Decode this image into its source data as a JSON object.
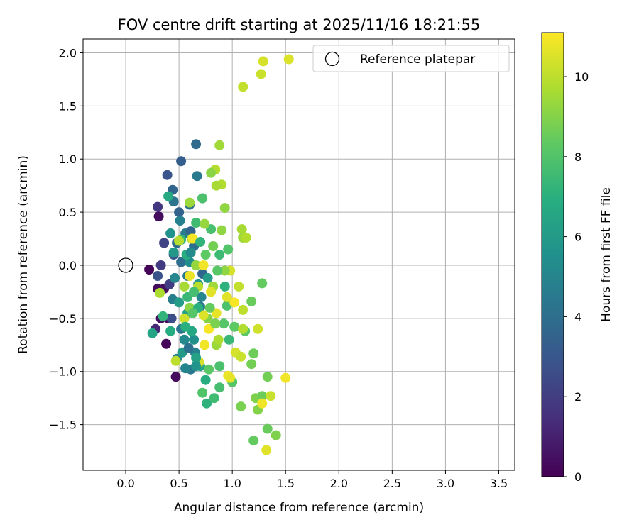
{
  "chart_data": {
    "type": "scatter",
    "title": "FOV centre drift starting at 2025/11/16 18:21:55",
    "xlabel": "Angular distance from reference (arcmin)",
    "ylabel": "Rotation from reference (arcmin)",
    "xlim": [
      -0.4,
      3.65
    ],
    "ylim": [
      -1.93,
      2.13
    ],
    "xticks": [
      0.0,
      0.5,
      1.0,
      1.5,
      2.0,
      2.5,
      3.0,
      3.5
    ],
    "xtick_labels": [
      "0.0",
      "0.5",
      "1.0",
      "1.5",
      "2.0",
      "2.5",
      "3.0",
      "3.5"
    ],
    "yticks": [
      -1.5,
      -1.0,
      -0.5,
      0.0,
      0.5,
      1.0,
      1.5,
      2.0
    ],
    "ytick_labels": [
      "−1.5",
      "−1.0",
      "−0.5",
      "0.0",
      "0.5",
      "1.0",
      "1.5",
      "2.0"
    ],
    "grid": true,
    "legend": {
      "placement": "top-right",
      "entries": [
        "Reference platepar"
      ]
    },
    "colormap": "viridis",
    "colorbar": {
      "label": "Hours from first FF file",
      "range": [
        0,
        11.1
      ],
      "ticks": [
        0,
        2,
        4,
        6,
        8,
        10
      ],
      "tick_labels": [
        "0",
        "2",
        "4",
        "6",
        "8",
        "10"
      ]
    },
    "reference_point": {
      "name": "Reference platepar",
      "x": 0.0,
      "y": 0.0
    },
    "points": [
      [
        0.22,
        -0.04,
        0.1
      ],
      [
        0.3,
        -0.22,
        0.3
      ],
      [
        0.36,
        -0.22,
        0.4
      ],
      [
        0.4,
        -0.5,
        0.2
      ],
      [
        0.31,
        0.46,
        0.4
      ],
      [
        0.38,
        -0.74,
        0.2
      ],
      [
        0.47,
        -1.05,
        0.3
      ],
      [
        0.33,
        -0.5,
        0.5
      ],
      [
        0.28,
        -0.6,
        1.2
      ],
      [
        0.3,
        0.55,
        1.8
      ],
      [
        0.33,
        0.0,
        1.9
      ],
      [
        0.36,
        0.21,
        2.2
      ],
      [
        0.41,
        -0.18,
        2.0
      ],
      [
        0.43,
        -0.5,
        2.6
      ],
      [
        0.3,
        -0.1,
        2.8
      ],
      [
        0.45,
        0.1,
        3.0
      ],
      [
        0.39,
        0.85,
        2.9
      ],
      [
        0.52,
        0.98,
        3.3
      ],
      [
        0.44,
        0.71,
        3.6
      ],
      [
        0.66,
        1.14,
        3.8
      ],
      [
        0.67,
        0.84,
        4.5
      ],
      [
        0.6,
        0.57,
        4.1
      ],
      [
        0.72,
        0.63,
        3.4
      ],
      [
        0.45,
        0.6,
        4.2
      ],
      [
        0.5,
        0.5,
        3.5
      ],
      [
        0.56,
        0.3,
        4.6
      ],
      [
        0.61,
        0.32,
        3.6
      ],
      [
        0.48,
        0.21,
        3.9
      ],
      [
        0.52,
        0.03,
        4.0
      ],
      [
        0.58,
        -0.1,
        4.5
      ],
      [
        0.44,
        -0.32,
        4.7
      ],
      [
        0.52,
        -0.6,
        4.3
      ],
      [
        0.48,
        -0.88,
        4.9
      ],
      [
        0.61,
        -0.98,
        4.4
      ],
      [
        0.56,
        -0.97,
        5.0
      ],
      [
        0.65,
        -0.82,
        4.8
      ],
      [
        0.7,
        -0.39,
        4.6
      ],
      [
        0.72,
        -0.08,
        3.7
      ],
      [
        0.64,
        0.18,
        4.0
      ],
      [
        0.51,
        0.42,
        4.8
      ],
      [
        0.42,
        0.3,
        5.6
      ],
      [
        0.45,
        0.12,
        5.9
      ],
      [
        0.6,
        0.03,
        5.4
      ],
      [
        0.68,
        -0.18,
        5.8
      ],
      [
        0.58,
        -0.45,
        6.2
      ],
      [
        0.64,
        -0.7,
        5.5
      ],
      [
        0.53,
        -0.82,
        6.0
      ],
      [
        0.7,
        -0.95,
        6.5
      ],
      [
        0.75,
        -1.08,
        6.9
      ],
      [
        0.76,
        -1.3,
        7.1
      ],
      [
        0.42,
        -0.62,
        6.8
      ],
      [
        0.35,
        -0.48,
        7.2
      ],
      [
        0.25,
        -0.64,
        6.4
      ],
      [
        0.4,
        0.65,
        6.7
      ],
      [
        0.52,
        0.24,
        7.3
      ],
      [
        0.58,
        -0.3,
        7.4
      ],
      [
        0.66,
        0.4,
        7.6
      ],
      [
        0.8,
        0.34,
        7.8
      ],
      [
        0.88,
        0.1,
        7.5
      ],
      [
        0.96,
        0.15,
        8.0
      ],
      [
        0.95,
        -0.38,
        7.9
      ],
      [
        0.92,
        -0.55,
        8.1
      ],
      [
        1.02,
        -0.58,
        8.3
      ],
      [
        1.12,
        -0.62,
        8.2
      ],
      [
        1.28,
        -0.17,
        8.4
      ],
      [
        1.18,
        -0.34,
        8.5
      ],
      [
        1.2,
        -0.83,
        8.6
      ],
      [
        1.18,
        -0.93,
        8.7
      ],
      [
        1.08,
        -1.33,
        8.8
      ],
      [
        1.22,
        -1.25,
        8.9
      ],
      [
        1.24,
        -1.36,
        9.0
      ],
      [
        1.28,
        -1.23,
        8.6
      ],
      [
        1.33,
        -1.05,
        8.7
      ],
      [
        1.33,
        -1.54,
        8.5
      ],
      [
        1.41,
        -1.6,
        8.9
      ],
      [
        1.2,
        -1.65,
        8.4
      ],
      [
        1.0,
        -1.1,
        8.1
      ],
      [
        0.88,
        -1.15,
        7.7
      ],
      [
        0.83,
        -1.25,
        7.6
      ],
      [
        0.72,
        -1.2,
        8.0
      ],
      [
        0.72,
        0.63,
        7.9
      ],
      [
        0.9,
        0.33,
        9.2
      ],
      [
        0.82,
        -0.2,
        9.5
      ],
      [
        0.77,
        -0.5,
        9.0
      ],
      [
        0.85,
        -0.75,
        9.4
      ],
      [
        0.6,
        -0.4,
        9.1
      ],
      [
        0.55,
        -0.2,
        9.6
      ],
      [
        0.66,
        0.0,
        9.3
      ],
      [
        0.62,
        0.25,
        9.7
      ],
      [
        0.88,
        1.13,
        9.5
      ],
      [
        0.84,
        0.9,
        9.8
      ],
      [
        0.8,
        0.87,
        9.1
      ],
      [
        0.9,
        0.76,
        9.8
      ],
      [
        0.85,
        0.75,
        9.6
      ],
      [
        0.6,
        0.59,
        9.4
      ],
      [
        0.93,
        0.54,
        9.2
      ],
      [
        1.09,
        0.34,
        9.6
      ],
      [
        1.1,
        0.26,
        9.4
      ],
      [
        1.13,
        0.26,
        9.8
      ],
      [
        1.06,
        -0.2,
        10.1
      ],
      [
        1.1,
        -0.42,
        10.0
      ],
      [
        1.1,
        -0.6,
        9.8
      ],
      [
        1.03,
        -0.82,
        10.4
      ],
      [
        1.08,
        -0.86,
        10.2
      ],
      [
        0.96,
        -1.04,
        10.8
      ],
      [
        0.98,
        -1.06,
        10.7
      ],
      [
        1.28,
        -1.3,
        10.9
      ],
      [
        1.36,
        -1.23,
        10.2
      ],
      [
        1.32,
        -1.74,
        10.6
      ],
      [
        1.5,
        -1.06,
        10.9
      ],
      [
        1.24,
        -0.6,
        10.3
      ],
      [
        1.1,
        1.68,
        10.1
      ],
      [
        1.27,
        1.8,
        10.2
      ],
      [
        1.29,
        1.92,
        10.4
      ],
      [
        1.53,
        1.94,
        10.5
      ],
      [
        1.02,
        -0.35,
        11.0
      ],
      [
        0.95,
        -0.3,
        10.6
      ],
      [
        0.85,
        -0.45,
        10.7
      ],
      [
        0.78,
        -0.6,
        11.0
      ],
      [
        0.74,
        -0.75,
        10.9
      ],
      [
        0.69,
        -0.91,
        10.4
      ],
      [
        0.6,
        -0.1,
        10.8
      ],
      [
        0.63,
        0.25,
        11.0
      ],
      [
        0.73,
        0.0,
        10.9
      ],
      [
        0.8,
        -0.25,
        10.6
      ],
      [
        0.98,
        -0.05,
        10.4
      ],
      [
        0.68,
        -0.2,
        9.9
      ],
      [
        0.55,
        -0.5,
        10.3
      ],
      [
        0.47,
        -0.9,
        10.0
      ],
      [
        0.32,
        -0.26,
        9.7
      ],
      [
        0.5,
        0.23,
        9.9
      ],
      [
        0.74,
        0.39,
        9.3
      ],
      [
        0.93,
        -0.05,
        9.2
      ],
      [
        0.93,
        -0.2,
        7.1
      ],
      [
        0.97,
        -0.7,
        7.4
      ],
      [
        0.88,
        -0.95,
        7.8
      ],
      [
        0.78,
        -0.98,
        8.2
      ],
      [
        0.66,
        -0.87,
        6.3
      ],
      [
        0.62,
        -0.62,
        6.6
      ],
      [
        0.55,
        -0.7,
        5.2
      ],
      [
        0.59,
        -0.78,
        4.1
      ],
      [
        0.66,
        -0.95,
        5.7
      ],
      [
        0.71,
        -0.3,
        5.1
      ],
      [
        0.77,
        -0.12,
        6.1
      ],
      [
        0.79,
        -0.4,
        8.4
      ],
      [
        0.84,
        -0.55,
        8.8
      ],
      [
        0.87,
        -0.7,
        9.7
      ],
      [
        0.73,
        -0.47,
        10.5
      ],
      [
        0.68,
        -0.4,
        7.0
      ],
      [
        0.64,
        -0.25,
        7.7
      ],
      [
        0.57,
        0.1,
        6.9
      ],
      [
        0.61,
        0.12,
        5.3
      ],
      [
        0.7,
        0.22,
        7.2
      ],
      [
        0.75,
        0.1,
        8.3
      ],
      [
        0.82,
        0.18,
        8.7
      ],
      [
        0.86,
        -0.05,
        8.2
      ],
      [
        0.46,
        -0.12,
        5.1
      ],
      [
        0.5,
        -0.35,
        6.1
      ],
      [
        0.56,
        -0.58,
        7.0
      ],
      [
        0.63,
        -0.45,
        8.1
      ]
    ]
  }
}
